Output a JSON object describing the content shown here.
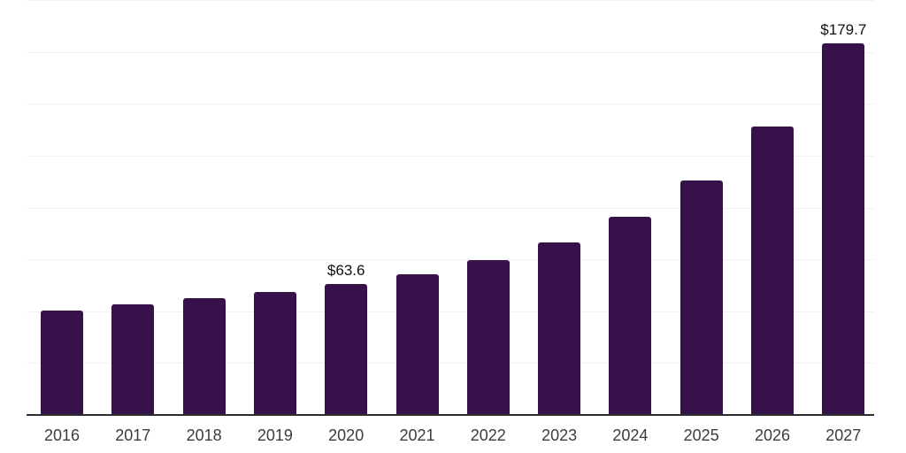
{
  "chart_data": {
    "type": "bar",
    "title": "",
    "xlabel": "",
    "ylabel": "",
    "categories": [
      "2016",
      "2017",
      "2018",
      "2019",
      "2020",
      "2021",
      "2022",
      "2023",
      "2024",
      "2025",
      "2026",
      "2027"
    ],
    "values": [
      50.8,
      53.9,
      56.9,
      59.7,
      63.6,
      68.2,
      75.1,
      83.8,
      95.9,
      113.4,
      139.6,
      179.7
    ],
    "value_labels": [
      null,
      null,
      null,
      null,
      "$63.6",
      null,
      null,
      null,
      null,
      null,
      null,
      "$179.7"
    ],
    "ylim": [
      0,
      200
    ],
    "grid_step": 25,
    "grid": true,
    "legend": false,
    "y_axis_labels_shown": false
  },
  "style": {
    "bar_color": "#36114A",
    "gridline_color": "#F2F1F3",
    "axis_color": "#2B2B2B",
    "tick_label_color": "#3C3C3C",
    "value_label_color": "#111111",
    "background_color": "#FFFFFF"
  }
}
